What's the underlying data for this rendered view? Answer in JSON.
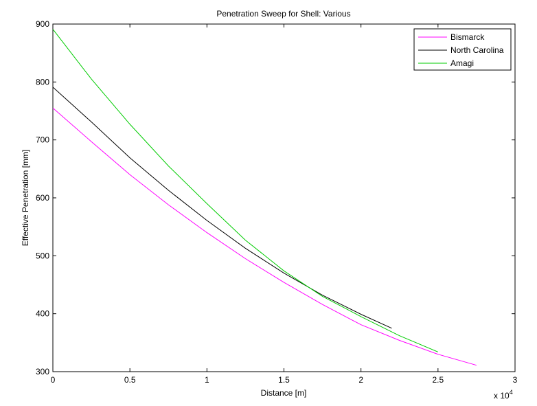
{
  "chart_data": {
    "type": "line",
    "title": "Penetration Sweep for Shell: Various",
    "xlabel": "Distance [m]",
    "ylabel": "Effective Penetration [mm]",
    "x_exponent_label": "x 10",
    "x_exponent_power": "4",
    "xlim": [
      0,
      30000
    ],
    "ylim": [
      300,
      900
    ],
    "x_tick_values": [
      0,
      5000,
      10000,
      15000,
      20000,
      25000,
      30000
    ],
    "x_tick_labels": [
      "0",
      "0.5",
      "1",
      "1.5",
      "2",
      "2.5",
      "3"
    ],
    "y_tick_values": [
      300,
      400,
      500,
      600,
      700,
      800,
      900
    ],
    "y_tick_labels": [
      "300",
      "400",
      "500",
      "600",
      "700",
      "800",
      "900"
    ],
    "grid": false,
    "legend_position": "top-right",
    "series": [
      {
        "name": "Bismarck",
        "color": "#ff00ff",
        "x": [
          0,
          2500,
          5000,
          7500,
          10000,
          12500,
          15000,
          17500,
          20000,
          22500,
          25000,
          27500
        ],
        "y": [
          755,
          697,
          640,
          588,
          540,
          495,
          454,
          416,
          381,
          354,
          330,
          311
        ]
      },
      {
        "name": "North Carolina",
        "color": "#000000",
        "x": [
          0,
          2500,
          5000,
          7500,
          10000,
          12500,
          15000,
          17500,
          20000,
          22000
        ],
        "y": [
          791,
          731,
          669,
          613,
          561,
          513,
          470,
          432,
          399,
          375
        ]
      },
      {
        "name": "Amagi",
        "color": "#00cc00",
        "x": [
          0,
          2500,
          5000,
          7500,
          10000,
          12500,
          15000,
          17500,
          20000,
          22500,
          25000
        ],
        "y": [
          891,
          805,
          727,
          655,
          590,
          527,
          474,
          430,
          395,
          362,
          334
        ]
      }
    ]
  }
}
